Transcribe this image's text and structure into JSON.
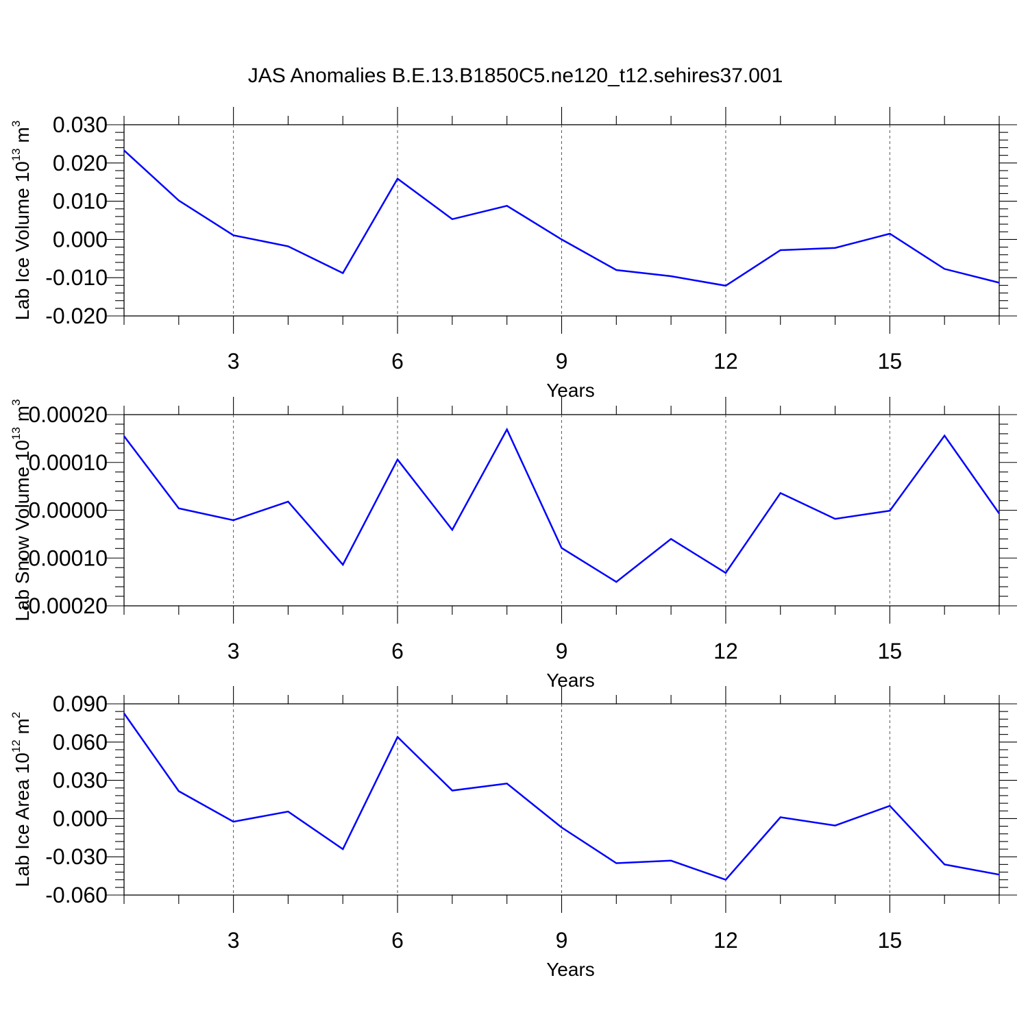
{
  "chart_data": [
    {
      "type": "line",
      "title": "JAS Anomalies B.E.13.B1850C5.ne120_t12.sehires37.001",
      "ylabel": "Lab Ice Volume 10",
      "ylabel_sup": "13",
      "ylabel_unit": " m",
      "ylabel_unit_sup": "3",
      "xlabel": "Years",
      "xlim": [
        1,
        17
      ],
      "ylim": [
        -0.02,
        0.03
      ],
      "xticks": [
        "3",
        "6",
        "9",
        "12",
        "15"
      ],
      "yticks": [
        "-0.020",
        "-0.010",
        "0.000",
        "0.010",
        "0.020",
        "0.030"
      ],
      "grid": "x-dashed",
      "x": [
        1,
        2,
        3,
        4,
        5,
        6,
        7,
        8,
        9,
        10,
        11,
        12,
        13,
        14,
        15,
        16,
        17
      ],
      "series": [
        {
          "name": "Lab Ice Volume",
          "color": "#0000ff",
          "values": [
            0.0233,
            0.0102,
            0.0011,
            -0.0018,
            -0.0088,
            0.0159,
            0.0053,
            0.0088,
            0.0,
            -0.008,
            -0.0096,
            -0.0121,
            -0.0028,
            -0.0022,
            0.0015,
            -0.0077,
            -0.0113
          ]
        }
      ]
    },
    {
      "type": "line",
      "ylabel": "Lab Snow Volume 10",
      "ylabel_sup": "13",
      "ylabel_unit": " m",
      "ylabel_unit_sup": "3",
      "xlabel": "Years",
      "xlim": [
        1,
        17
      ],
      "ylim": [
        -0.0002,
        0.0002
      ],
      "xticks": [
        "3",
        "6",
        "9",
        "12",
        "15"
      ],
      "yticks": [
        "-0.00020",
        "-0.00010",
        "0.00000",
        "0.00010",
        "0.00020"
      ],
      "grid": "x-dashed",
      "x": [
        1,
        2,
        3,
        4,
        5,
        6,
        7,
        8,
        9,
        10,
        11,
        12,
        13,
        14,
        15,
        16,
        17
      ],
      "series": [
        {
          "name": "Lab Snow Volume",
          "color": "#0000ff",
          "values": [
            0.000155,
            4e-06,
            -2.1e-05,
            1.8e-05,
            -0.000114,
            0.000106,
            -4.1e-05,
            0.000169,
            -7.9e-05,
            -0.00015,
            -6e-05,
            -0.000131,
            3.6e-05,
            -1.8e-05,
            -1e-06,
            0.000156,
            -7e-06
          ]
        }
      ]
    },
    {
      "type": "line",
      "ylabel": "Lab Ice Area 10",
      "ylabel_sup": "12",
      "ylabel_unit": " m",
      "ylabel_unit_sup": "2",
      "xlabel": "Years",
      "xlim": [
        1,
        17
      ],
      "ylim": [
        -0.06,
        0.09
      ],
      "xticks": [
        "3",
        "6",
        "9",
        "12",
        "15"
      ],
      "yticks": [
        "-0.060",
        "-0.030",
        "0.000",
        "0.030",
        "0.060",
        "0.090"
      ],
      "grid": "x-dashed",
      "x": [
        1,
        2,
        3,
        4,
        5,
        6,
        7,
        8,
        9,
        10,
        11,
        12,
        13,
        14,
        15,
        16,
        17
      ],
      "series": [
        {
          "name": "Lab Ice Area",
          "color": "#0000ff",
          "values": [
            0.0825,
            0.0215,
            -0.0025,
            0.0055,
            -0.024,
            0.064,
            0.022,
            0.0275,
            -0.007,
            -0.035,
            -0.033,
            -0.048,
            0.001,
            -0.0055,
            0.01,
            -0.036,
            -0.044
          ]
        }
      ]
    }
  ]
}
